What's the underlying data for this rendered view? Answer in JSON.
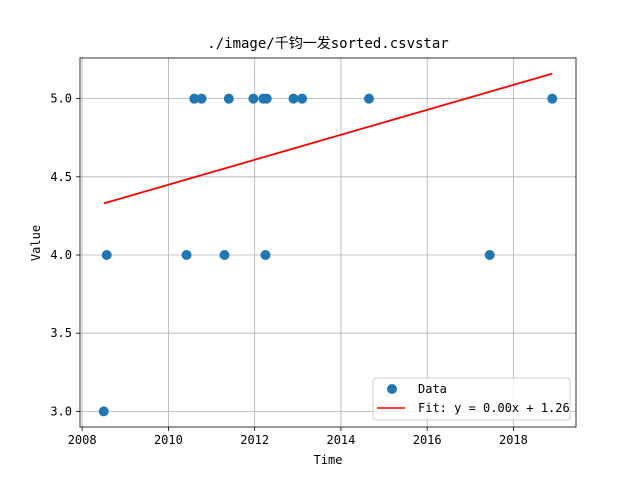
{
  "chart_data": {
    "type": "scatter",
    "title": "./image/千钧一发sorted.csvstar",
    "xlabel": "Time",
    "ylabel": "Value",
    "xlim": [
      2007.95,
      2019.45
    ],
    "ylim": [
      2.9,
      5.26
    ],
    "xticks": [
      2008,
      2010,
      2012,
      2014,
      2016,
      2018
    ],
    "xtick_labels": [
      "2008",
      "2010",
      "2012",
      "2014",
      "2016",
      "2018"
    ],
    "yticks": [
      3.0,
      3.5,
      4.0,
      4.5,
      5.0
    ],
    "ytick_labels": [
      "3.0",
      "3.5",
      "4.0",
      "4.5",
      "5.0"
    ],
    "grid": true,
    "legend_position": "lower-right",
    "series": [
      {
        "name": "Data",
        "kind": "scatter",
        "color": "#1f77b4",
        "points": [
          {
            "x": 2008.5,
            "y": 3.0
          },
          {
            "x": 2008.57,
            "y": 4.0
          },
          {
            "x": 2010.42,
            "y": 4.0
          },
          {
            "x": 2010.6,
            "y": 5.0
          },
          {
            "x": 2010.77,
            "y": 5.0
          },
          {
            "x": 2011.3,
            "y": 4.0
          },
          {
            "x": 2011.4,
            "y": 5.0
          },
          {
            "x": 2011.97,
            "y": 5.0
          },
          {
            "x": 2012.2,
            "y": 5.0
          },
          {
            "x": 2012.28,
            "y": 5.0
          },
          {
            "x": 2012.25,
            "y": 4.0
          },
          {
            "x": 2012.9,
            "y": 5.0
          },
          {
            "x": 2013.1,
            "y": 5.0
          },
          {
            "x": 2014.65,
            "y": 5.0
          },
          {
            "x": 2017.45,
            "y": 4.0
          },
          {
            "x": 2018.9,
            "y": 5.0
          }
        ]
      },
      {
        "name": "Fit: y = 0.00x + 1.26",
        "kind": "line",
        "color": "#ff0000",
        "x": [
          2008.5,
          2018.9
        ],
        "y": [
          4.33,
          5.16
        ]
      }
    ]
  }
}
